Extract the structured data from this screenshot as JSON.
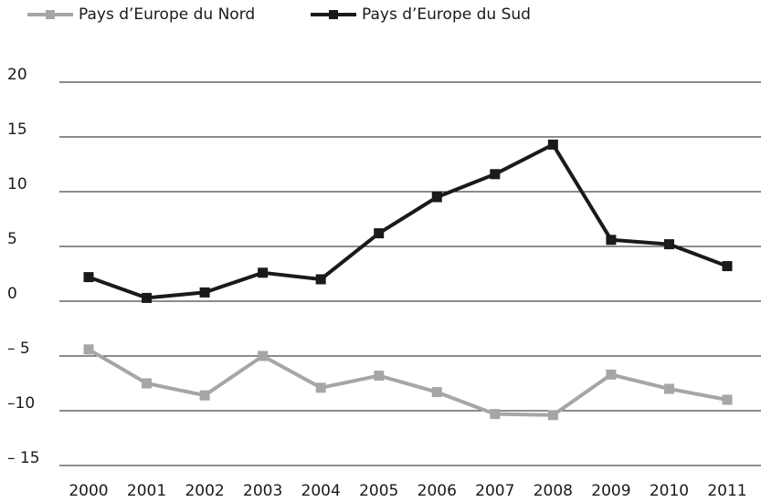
{
  "chart_data": {
    "type": "line",
    "categories": [
      "2000",
      "2001",
      "2002",
      "2003",
      "2004",
      "2005",
      "2006",
      "2007",
      "2008",
      "2009",
      "2010",
      "2011"
    ],
    "series": [
      {
        "name": "Pays d’Europe du Nord",
        "color": "#a6a6a6",
        "values": [
          -4.4,
          -7.5,
          -8.6,
          -5.0,
          -7.9,
          -6.8,
          -8.3,
          -10.3,
          -10.4,
          -6.7,
          -8.0,
          -9.0
        ]
      },
      {
        "name": "Pays d’Europe du Sud",
        "color": "#1a1a1a",
        "values": [
          2.2,
          0.3,
          0.8,
          2.6,
          2.0,
          6.2,
          9.5,
          11.6,
          14.3,
          5.6,
          5.2,
          3.2
        ]
      }
    ],
    "ylim": [
      -15,
      20
    ],
    "yticks": [
      {
        "value": -15,
        "label": "– 15"
      },
      {
        "value": -10,
        "label": "–10"
      },
      {
        "value": -5,
        "label": "– 5"
      },
      0,
      5,
      10,
      15,
      20
    ],
    "grid": true,
    "legend": "top"
  }
}
